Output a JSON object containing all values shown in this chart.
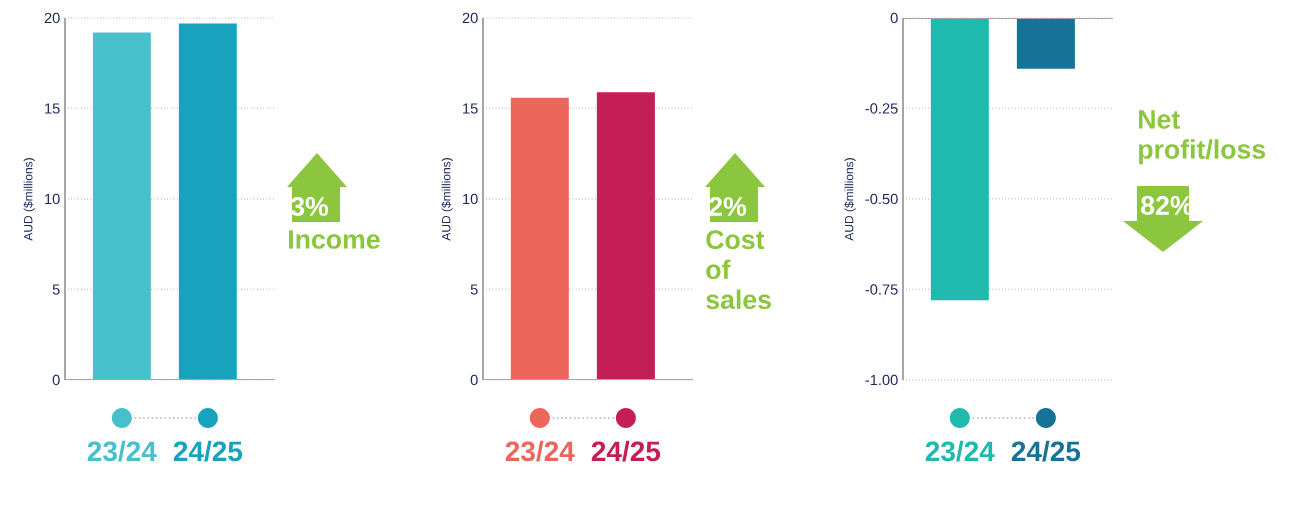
{
  "chart_data": [
    {
      "type": "bar",
      "ylabel": "AUD ($millions)",
      "categories": [
        "23/24",
        "24/25"
      ],
      "values": [
        19.2,
        19.7
      ],
      "colors": [
        "#48c0cb",
        "#17a2bd"
      ],
      "ylim": [
        0,
        20
      ],
      "yticks": [
        0,
        5,
        10,
        15,
        20
      ],
      "grid": "y",
      "annotations": [
        "3%",
        "Income"
      ]
    },
    {
      "type": "bar",
      "ylabel": "AUD ($millions)",
      "categories": [
        "23/24",
        "24/25"
      ],
      "values": [
        15.6,
        15.9
      ],
      "colors": [
        "#ec665b",
        "#c41e57"
      ],
      "ylim": [
        0,
        20
      ],
      "yticks": [
        0,
        5,
        10,
        15,
        20
      ],
      "grid": "y",
      "annotations": [
        "2%",
        "Cost of sales"
      ]
    },
    {
      "type": "bar",
      "ylabel": "AUD ($millions)",
      "categories": [
        "23/24",
        "24/25"
      ],
      "values": [
        -0.78,
        -0.14
      ],
      "colors": [
        "#20b9ad",
        "#167396"
      ],
      "ylim": [
        -1,
        0
      ],
      "yticks": [
        0,
        {
          "value": -0.25,
          "label": "-0.25"
        },
        {
          "value": -0.5,
          "label": "-0.50"
        },
        {
          "value": -0.75,
          "label": "-0.75"
        },
        {
          "value": -1,
          "label": "-1.00"
        }
      ],
      "grid": "y",
      "annotations": [
        "Net profit/loss",
        "82%"
      ]
    }
  ]
}
